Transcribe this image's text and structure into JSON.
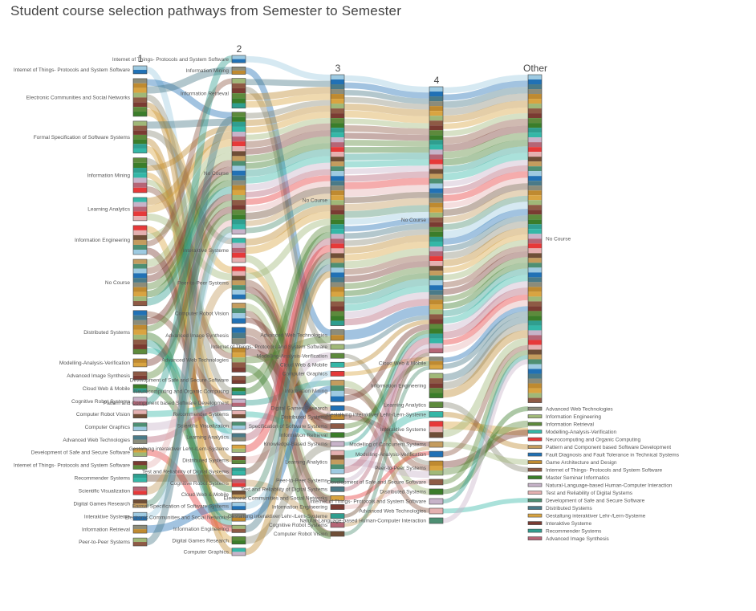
{
  "title": "Student course selection pathways from Semester to Semester",
  "chart_data": {
    "type": "sankey",
    "columns": [
      "1",
      "2",
      "3",
      "4",
      "Other"
    ],
    "nodes": {
      "1": [
        "Internet of Things- Protocols and System Software",
        "Electronic Communities and Social Networks",
        "Formal Specification of Software Systems",
        "Information Mining",
        "Learning Analytics",
        "Information Engineering",
        "No Course",
        "Distributed Systems",
        "Modelling-Analysis-Verification",
        "Advanced Image Synthesis",
        "Cloud Web & Mobile",
        "Cognitive Robot Systems",
        "Computer Robot Vision",
        "Computer Graphics",
        "Advanced Web Technologies",
        "Development of Safe and Secure Software",
        "Internet of Things- Protocols and System Software",
        "Recommender Systems",
        "Scientific Visualization",
        "Digital Games Research",
        "Interaktive Systeme",
        "Information Retrieval",
        "Peer-to-Peer Systems"
      ],
      "2": [
        "Internet of Things- Protocols and System Software",
        "Information Mining",
        "Information Retrieval",
        "No Course",
        "Interaktive Systeme",
        "Peer-to-Peer Systems",
        "Computer Robot Vision",
        "Advanced Image Synthesis",
        "Advanced Web Technologies",
        "Development of Safe and Secure Software",
        "Neurocomputing and Organic Computing",
        "Pattern and Component based Software Development",
        "Recommender Systems",
        "Scientific Visualization",
        "Learning Analytics",
        "Gestaltung interaktiver Lehr-/Lern-Systeme",
        "Distributed Systems",
        "Test and Reliability of Digital Systems",
        "Cognitive Robot Systems",
        "Cloud Web & Mobile",
        "Formal Specification of Software Systems",
        "Electronic Communities and Social Networks",
        "Information Engineering",
        "Digital Games Research",
        "Computer Graphics"
      ],
      "3": [
        "No Course",
        "Advanced Web Technologies",
        "Internet of Things- Protocols and System Software",
        "Modelling-Analysis-Verification",
        "Cloud Web & Mobile",
        "Computer Graphics",
        "Information Mining",
        "Digital Games Research",
        "Distributed Systems",
        "Specification of Software Systems",
        "Information Retrieval",
        "Knowledge-Based Systems",
        "Learning Analytics",
        "Peer-to-Peer Systems",
        "Test and Reliability of Digital Systems",
        "Electronic Communities and Social Networks",
        "Information Engineering",
        "Gestaltung interaktiver Lehr-/Lern-Systeme",
        "Cognitive Robot Systems",
        "Computer Robot Vision"
      ],
      "4": [
        "No Course",
        "Cloud Web & Mobile",
        "Information Engineering",
        "Learning Analytics",
        "Gestaltung interaktiver Lehr-/Lern-Systeme",
        "Interaktive Systeme",
        "Modelling of Concurrent Systems",
        "Modelling-Analysis-Verification",
        "Peer-to-Peer Systems",
        "Development of Safe and Secure Software",
        "Distributed Systems",
        "Internet of Things- Protocols and System Software",
        "Advanced Web Technologies",
        "Natural-Language-based Human-Computer Interaction"
      ],
      "Other": [
        "No Course",
        "Advanced Web Technologies",
        "Information Engineering",
        "Information Retrieval",
        "Modelling-Analysis-Verification",
        "Neurocomputing and Organic Computing",
        "Pattern and Component based Software Development",
        "Fault Diagnosis and Fault Tolerance in Technical Systems",
        "Game Architecture and Design",
        "Internet of Things- Protocols and System Software",
        "Master Seminar Informatics",
        "Natural-Language-based Human-Computer Interaction",
        "Test and Reliability of Digital Systems",
        "Development of Safe and Secure Software",
        "Distributed Systems",
        "Gestaltung interaktiver Lehr-/Lern-Systeme",
        "Interaktive Systeme",
        "Recommender Systems",
        "Advanced Image Synthesis"
      ]
    }
  }
}
